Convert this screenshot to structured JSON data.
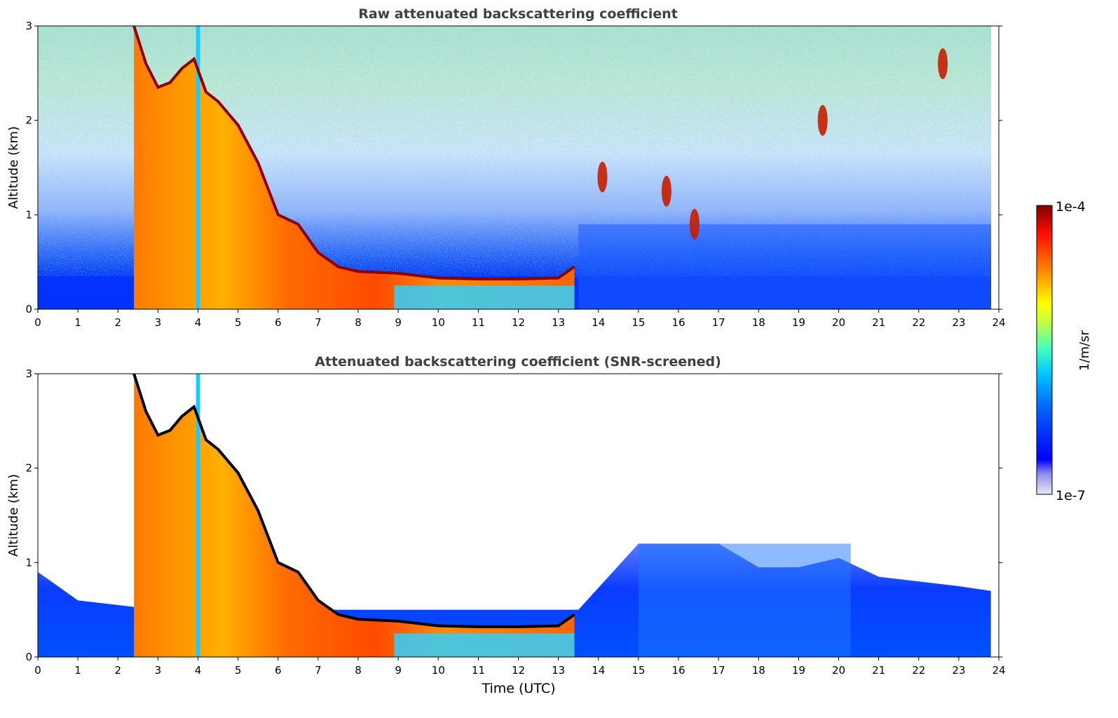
{
  "figure": {
    "panels": [
      {
        "title": "Raw attenuated backscattering coefficient",
        "ylabel": "Altitude (km)",
        "xlabel": ""
      },
      {
        "title": "Attenuated backscattering coefficient (SNR-screened)",
        "ylabel": "Altitude (km)",
        "xlabel": "Time (UTC)"
      }
    ],
    "colorbar": {
      "label": "1/m/sr",
      "max_label": "1e-4",
      "min_label": "1e-7",
      "scale": "log",
      "colormap": "jet",
      "colors": [
        "#e8e8f8",
        "#0000ff",
        "#00a0ff",
        "#00ffff",
        "#ffff00",
        "#ff7f00",
        "#ff0000",
        "#800000"
      ]
    }
  },
  "chart_data": [
    {
      "type": "heatmap",
      "title": "Raw attenuated backscattering coefficient",
      "xlabel": "",
      "ylabel": "Altitude (km)",
      "xlim": [
        0,
        24
      ],
      "ylim": [
        0,
        3
      ],
      "xticks": [
        "0",
        "1",
        "2",
        "3",
        "4",
        "5",
        "6",
        "7",
        "8",
        "9",
        "10",
        "11",
        "12",
        "13",
        "14",
        "15",
        "16",
        "17",
        "18",
        "19",
        "20",
        "21",
        "22",
        "23",
        "24"
      ],
      "yticks": [
        "0",
        "1",
        "2",
        "3"
      ],
      "colorscale": {
        "min": 1e-07,
        "max": 0.0001,
        "scale": "log",
        "label": "1/m/sr"
      },
      "cloud_top_km": {
        "time_h": [
          2.4,
          2.7,
          3.0,
          3.3,
          3.6,
          3.9,
          4.2,
          4.5,
          5.0,
          5.5,
          6.0,
          6.5,
          7.0,
          7.5,
          8.0,
          9.0,
          10.0,
          11.0,
          12.0,
          13.0,
          13.4
        ],
        "altitude_km": [
          3.0,
          2.6,
          2.35,
          2.4,
          2.55,
          2.65,
          2.3,
          2.2,
          1.95,
          1.55,
          1.0,
          0.9,
          0.6,
          0.45,
          0.4,
          0.38,
          0.33,
          0.32,
          0.32,
          0.33,
          0.45
        ]
      },
      "high_cloud_patches": [
        {
          "time_h": 14.1,
          "altitude_km": 1.4
        },
        {
          "time_h": 15.7,
          "altitude_km": 1.25
        },
        {
          "time_h": 16.4,
          "altitude_km": 0.9
        },
        {
          "time_h": 19.6,
          "altitude_km": 2.0
        },
        {
          "time_h": 22.6,
          "altitude_km": 2.6
        }
      ]
    },
    {
      "type": "heatmap",
      "title": "Attenuated backscattering coefficient (SNR-screened)",
      "xlabel": "Time (UTC)",
      "ylabel": "Altitude (km)",
      "xlim": [
        0,
        24
      ],
      "ylim": [
        0,
        3
      ],
      "xticks": [
        "0",
        "1",
        "2",
        "3",
        "4",
        "5",
        "6",
        "7",
        "8",
        "9",
        "10",
        "11",
        "12",
        "13",
        "14",
        "15",
        "16",
        "17",
        "18",
        "19",
        "20",
        "21",
        "22",
        "23",
        "24"
      ],
      "yticks": [
        "0",
        "1",
        "2",
        "3"
      ],
      "colorscale": {
        "min": 1e-07,
        "max": 0.0001,
        "scale": "log",
        "label": "1/m/sr"
      },
      "cloud_top_km": {
        "time_h": [
          2.4,
          2.7,
          3.0,
          3.3,
          3.6,
          3.9,
          4.2,
          4.5,
          5.0,
          5.5,
          6.0,
          6.5,
          7.0,
          7.5,
          8.0,
          9.0,
          10.0,
          11.0,
          12.0,
          13.0,
          13.4
        ],
        "altitude_km": [
          3.0,
          2.6,
          2.35,
          2.4,
          2.55,
          2.65,
          2.3,
          2.2,
          1.95,
          1.55,
          1.0,
          0.9,
          0.6,
          0.45,
          0.4,
          0.38,
          0.33,
          0.32,
          0.32,
          0.33,
          0.45
        ]
      },
      "boundary_layer_top_km": {
        "time_h": [
          0,
          1,
          2,
          3,
          4,
          13.5,
          15,
          16,
          17,
          18,
          19,
          20,
          21,
          22,
          23,
          23.8
        ],
        "altitude_km": [
          0.9,
          0.6,
          0.55,
          0.5,
          0.5,
          0.5,
          1.2,
          1.2,
          1.2,
          0.95,
          0.95,
          1.05,
          0.85,
          0.8,
          0.75,
          0.7
        ]
      }
    }
  ]
}
